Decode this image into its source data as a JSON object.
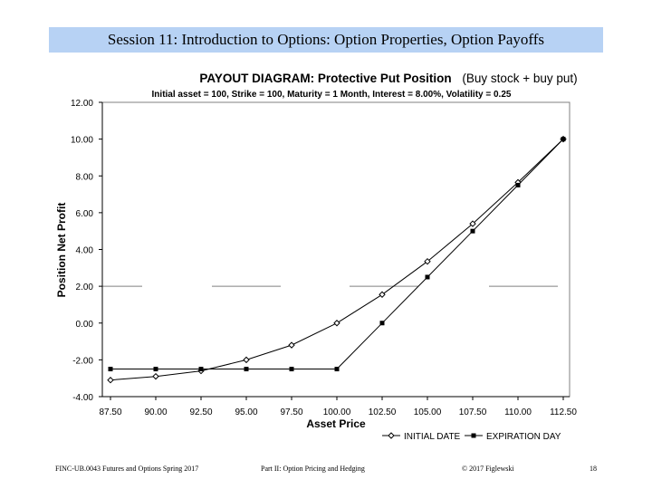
{
  "slide": {
    "header": "Session 11:  Introduction to Options: Option Properties, Option Payoffs"
  },
  "footer": {
    "course": "FINC-UB.0043  Futures and Options  Spring 2017",
    "part": "Part II: Option Pricing and Hedging",
    "copyright": "© 2017 Figlewski",
    "page": "18"
  },
  "colors": {
    "banner": "#b7d2f4",
    "series": "#000000",
    "gridline": "#808080"
  },
  "chart_data": {
    "type": "line",
    "title_bold": "PAYOUT DIAGRAM:  Protective Put Position",
    "title_suffix": "(Buy stock + buy put)",
    "subtitle": "Initial asset = 100,  Strike = 100,  Maturity = 1 Month,  Interest = 8.00%,  Volatility = 0.25",
    "xlabel": "Asset Price",
    "ylabel": "Position Net Profit",
    "x": [
      87.5,
      90.0,
      92.5,
      95.0,
      97.5,
      100.0,
      102.5,
      105.0,
      107.5,
      110.0,
      112.5
    ],
    "x_tick_labels": [
      "87.50",
      "90.00",
      "92.50",
      "95.00",
      "97.50",
      "100.00",
      "102.50",
      "105.00",
      "107.50",
      "110.00",
      "112.50"
    ],
    "y_tick_labels": [
      "-4.00",
      "-2.00",
      "0.00",
      "2.00",
      "4.00",
      "6.00",
      "8.00",
      "10.00",
      "12.00"
    ],
    "ylim": [
      -4,
      12
    ],
    "grid": false,
    "reference_line_y": 2.0,
    "legend_position": "bottom-right",
    "series": [
      {
        "name": "INITIAL DATE",
        "marker": "open-diamond",
        "values": [
          -3.1,
          -2.9,
          -2.6,
          -2.0,
          -1.2,
          0.0,
          1.55,
          3.35,
          5.4,
          7.65,
          10.0
        ]
      },
      {
        "name": "EXPIRATION DAY",
        "marker": "filled-square",
        "values": [
          -2.5,
          -2.5,
          -2.5,
          -2.5,
          -2.5,
          -2.5,
          0.0,
          2.5,
          5.0,
          7.5,
          10.0
        ]
      }
    ]
  }
}
